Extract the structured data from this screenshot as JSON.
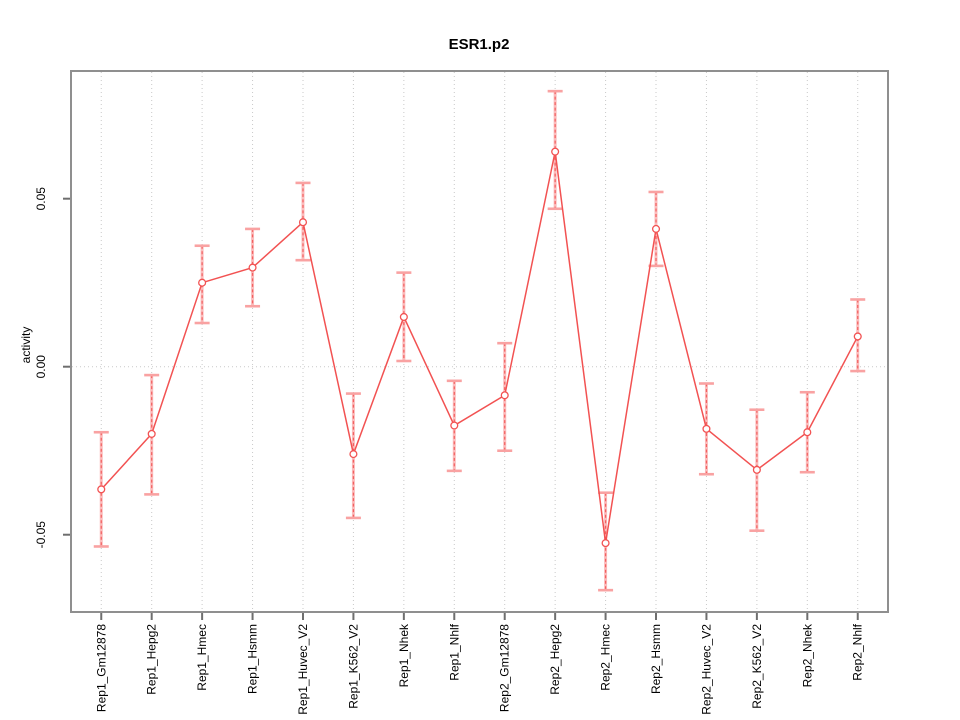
{
  "chart_data": {
    "type": "line",
    "title": "ESR1.p2",
    "xlabel": "",
    "ylabel": "activity",
    "categories": [
      "Rep1_Gm12878",
      "Rep1_Hepg2",
      "Rep1_Hmec",
      "Rep1_Hsmm",
      "Rep1_Huvec_V2",
      "Rep1_K562_V2",
      "Rep1_Nhek",
      "Rep1_Nhlf",
      "Rep2_Gm12878",
      "Rep2_Hepg2",
      "Rep2_Hmec",
      "Rep2_Hsmm",
      "Rep2_Huvec_V2",
      "Rep2_K562_V2",
      "Rep2_Nhek",
      "Rep2_Nhlf"
    ],
    "series": [
      {
        "name": "activity",
        "values": [
          -0.0365,
          -0.02,
          0.025,
          0.0295,
          0.043,
          -0.026,
          0.0148,
          -0.0175,
          -0.0085,
          0.064,
          -0.0525,
          0.041,
          -0.0185,
          -0.0307,
          -0.0195,
          0.009
        ],
        "error_low": [
          -0.0535,
          -0.038,
          0.013,
          0.018,
          0.0317,
          -0.045,
          0.0017,
          -0.031,
          -0.025,
          0.047,
          -0.0665,
          0.03,
          -0.032,
          -0.0488,
          -0.0314,
          -0.0013
        ],
        "error_high": [
          -0.0195,
          -0.0025,
          0.036,
          0.041,
          0.0547,
          -0.008,
          0.028,
          -0.0042,
          0.007,
          0.082,
          -0.0375,
          0.052,
          -0.005,
          -0.0128,
          -0.0076,
          0.02
        ]
      }
    ],
    "yticks": [
      -0.05,
      0,
      0.05
    ],
    "ytick_labels": [
      "-0.05",
      "0.00",
      "0.05"
    ],
    "ylim": [
      -0.073,
      0.088
    ],
    "grid": "dotted vertical line at each category, dotted horizontal line at zero",
    "legend": "none",
    "marker": "open-circle",
    "colors": {
      "line": "#f25252",
      "point_stroke": "#f25252",
      "point_fill": "#ffffff",
      "error_bar_light": "#fbbcbc",
      "error_bar_dash": "#f26060",
      "error_cap": "#f9a2a2",
      "grid": "#c9c9c9",
      "box": "#8f8f8f",
      "tick": "#6e6e6e",
      "text": "#000000",
      "background": "#ffffff"
    }
  }
}
